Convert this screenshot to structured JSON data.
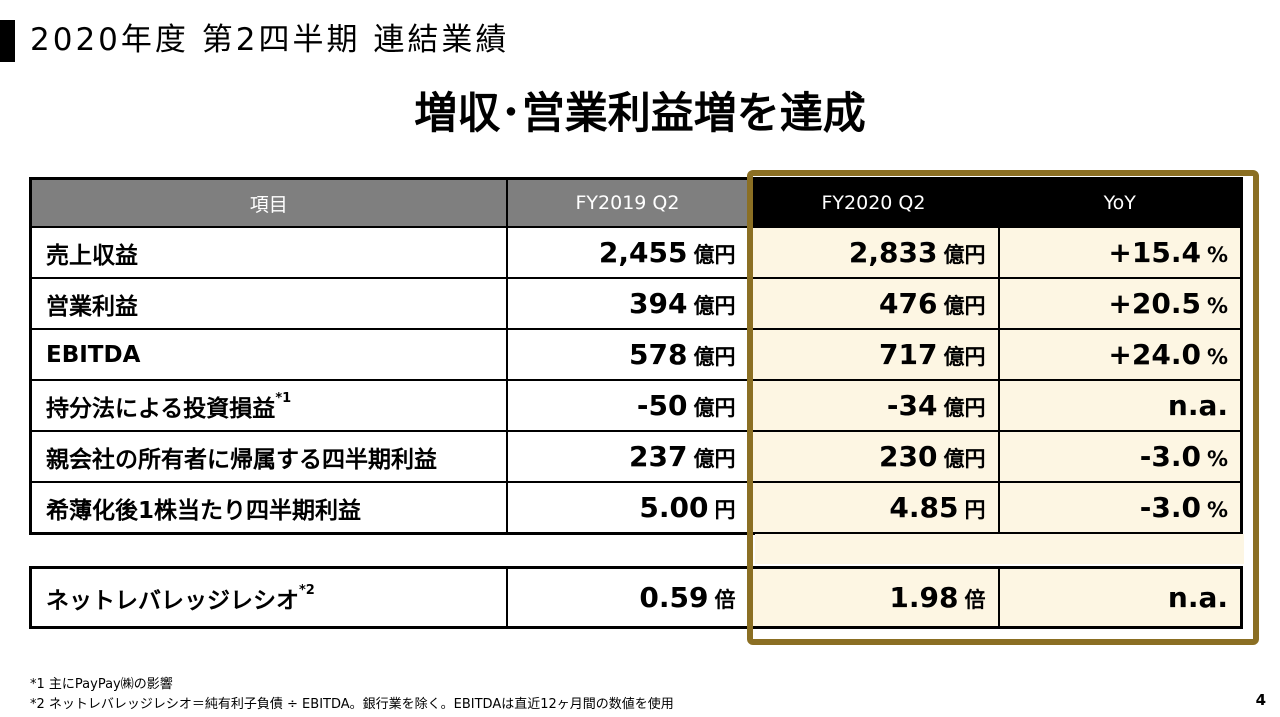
{
  "header": {
    "title": "2020年度 第2四半期 連結業績"
  },
  "headline": "増収･営業利益増を達成",
  "table": {
    "columns": [
      "項目",
      "FY2019 Q2",
      "FY2020 Q2",
      "YoY"
    ],
    "rows": [
      {
        "label": "売上収益",
        "note": "",
        "fy2019": "2,455",
        "fy2019_unit": "億円",
        "fy2020": "2,833",
        "fy2020_unit": "億円",
        "yoy": "+15.4",
        "yoy_unit": "%"
      },
      {
        "label": "営業利益",
        "note": "",
        "fy2019": "394",
        "fy2019_unit": "億円",
        "fy2020": "476",
        "fy2020_unit": "億円",
        "yoy": "+20.5",
        "yoy_unit": "%"
      },
      {
        "label": "EBITDA",
        "note": "",
        "fy2019": "578",
        "fy2019_unit": "億円",
        "fy2020": "717",
        "fy2020_unit": "億円",
        "yoy": "+24.0",
        "yoy_unit": "%"
      },
      {
        "label": "持分法による投資損益",
        "note": "*1",
        "fy2019": "-50",
        "fy2019_unit": "億円",
        "fy2020": "-34",
        "fy2020_unit": "億円",
        "yoy": "n.a.",
        "yoy_unit": ""
      },
      {
        "label": "親会社の所有者に帰属する四半期利益",
        "note": "",
        "fy2019": "237",
        "fy2019_unit": "億円",
        "fy2020": "230",
        "fy2020_unit": "億円",
        "yoy": "-3.0",
        "yoy_unit": "%"
      },
      {
        "label": "希薄化後1株当たり四半期利益",
        "note": "",
        "fy2019": "5.00",
        "fy2019_unit": "円",
        "fy2020": "4.85",
        "fy2020_unit": "円",
        "yoy": "-3.0",
        "yoy_unit": "%"
      }
    ]
  },
  "ratio_row": {
    "label": "ネットレバレッジレシオ",
    "note": "*2",
    "fy2019": "0.59",
    "fy2019_unit": "倍",
    "fy2020": "1.98",
    "fy2020_unit": "倍",
    "yoy": "n.a.",
    "yoy_unit": ""
  },
  "footnotes": [
    "*1 主にPayPay㈱の影響",
    "*2 ネットレバレッジレシオ＝純有利子負債 ÷ EBITDA。銀行業を除く。EBITDAは直近12ヶ月間の数値を使用"
  ],
  "page_number": "4",
  "colors": {
    "highlight_frame": "#8b6f23",
    "highlight_fill": "#fdf6e3",
    "header_gray": "#7f7f7f",
    "header_black": "#000000"
  }
}
